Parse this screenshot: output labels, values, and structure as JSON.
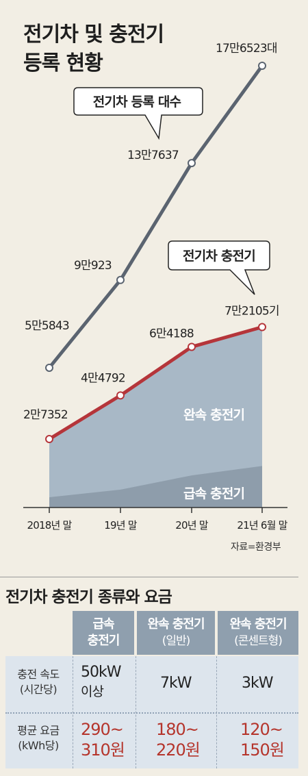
{
  "title": {
    "line1": "전기차 및 충전기",
    "line2": "등록 현황"
  },
  "chart_data": {
    "type": "line",
    "categories": [
      "2018년 말",
      "19년 말",
      "20년 말",
      "21년 6월 말"
    ],
    "series": [
      {
        "name": "전기차 등록 대수",
        "values": [
          55843,
          90923,
          137637,
          176523
        ],
        "labels": [
          "5만5843",
          "9만923",
          "13만7637",
          "17만6523대"
        ],
        "color": "#5b6470"
      },
      {
        "name": "전기차 충전기",
        "values": [
          27352,
          44792,
          64188,
          72105
        ],
        "labels": [
          "2만7352",
          "4만4792",
          "6만4188",
          "7만2105기"
        ],
        "color": "#b5353a"
      }
    ],
    "areas": [
      {
        "name": "완속 충전기",
        "color": "#a8b8c6"
      },
      {
        "name": "급속 충전기",
        "color": "#8e9dab"
      }
    ],
    "fast_charger_share": [
      0.15,
      0.16,
      0.2,
      0.23
    ],
    "ylim": [
      0,
      190000
    ]
  },
  "source": "자료=환경부",
  "table": {
    "title": "전기차 충전기 종류와 요금",
    "headers": [
      {
        "line1": "급속",
        "line2": "충전기"
      },
      {
        "line1": "완속 충전기",
        "line2": "(일반)"
      },
      {
        "line1": "완속 충전기",
        "line2": "(콘센트형)"
      }
    ],
    "rows": [
      {
        "label1": "충전 속도",
        "label2": "(시간당)",
        "values": [
          {
            "line1": "50kW",
            "line2": "이상"
          },
          {
            "line1": "7kW",
            "line2": ""
          },
          {
            "line1": "3kW",
            "line2": ""
          }
        ]
      },
      {
        "label1": "평균 요금",
        "label2": "(kWh당)",
        "values": [
          {
            "line1": "290~",
            "line2": "310원"
          },
          {
            "line1": "180~",
            "line2": "220원"
          },
          {
            "line1": "120~",
            "line2": "150원"
          }
        ]
      }
    ]
  },
  "colors": {
    "background": "#f2eee4",
    "ev_line": "#5b6470",
    "charger_line": "#b5353a",
    "slow_area": "#a8b8c6",
    "fast_area": "#8e9dab",
    "table_header": "#8f9fae",
    "table_body": "#dde5ed",
    "fee_text": "#b5352c"
  }
}
